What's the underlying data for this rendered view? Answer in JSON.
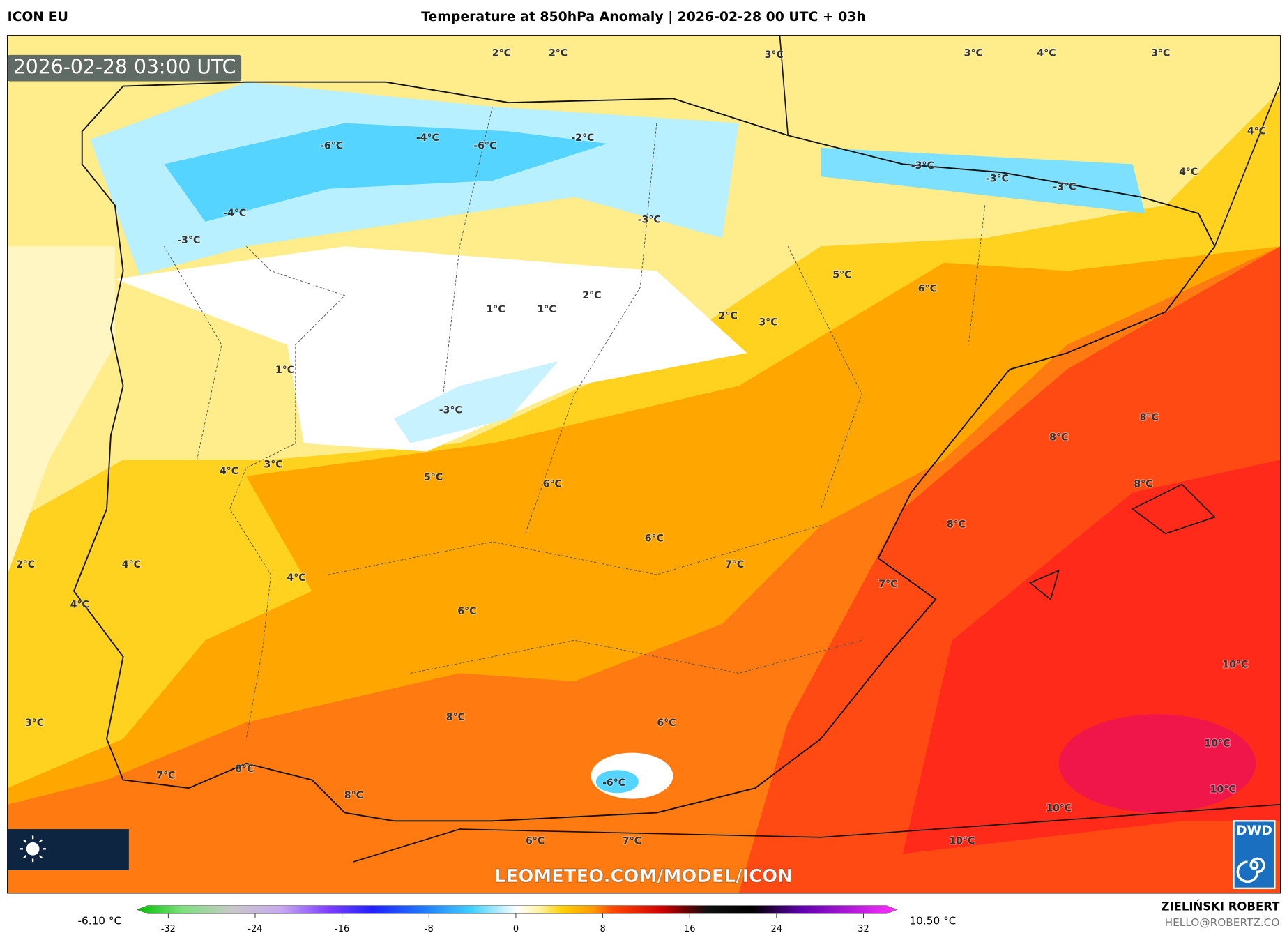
{
  "header": {
    "model": "ICON EU",
    "title": "Temperature at 850hPa Anomaly | 2026-02-28 00 UTC + 03h"
  },
  "map": {
    "timestamp": "2026-02-28 03:00 UTC",
    "contour_labels": [
      "2°C",
      "2°C",
      "3°C",
      "3°C",
      "4°C",
      "3°C",
      "4°C",
      "4°C",
      "-6°C",
      "-4°C",
      "-6°C",
      "-2°C",
      "-3°C",
      "-3°C",
      "-3°C",
      "-4°C",
      "-3°C",
      "-3°C",
      "5°C",
      "6°C",
      "2°C",
      "1°C",
      "1°C",
      "2°C",
      "3°C",
      "1°C",
      "-3°C",
      "8°C",
      "8°C",
      "4°C",
      "3°C",
      "5°C",
      "6°C",
      "8°C",
      "8°C",
      "6°C",
      "2°C",
      "4°C",
      "7°C",
      "4°C",
      "7°C",
      "4°C",
      "6°C",
      "10°C",
      "6°C",
      "3°C",
      "8°C",
      "10°C",
      "7°C",
      "8°C",
      "-6°C",
      "10°C",
      "8°C",
      "10°C",
      "6°C",
      "7°C",
      "10°C"
    ],
    "watermark": "LEOMETEO.COM/MODEL/ICON",
    "logo": "DWD"
  },
  "colorbar": {
    "min_label": "-6.10 °C",
    "max_label": "10.50 °C",
    "ticks": [
      -32,
      -24,
      -16,
      -8,
      0,
      8,
      16,
      24,
      32
    ]
  },
  "footer": {
    "author": "ZIELIŃSKI ROBERT",
    "email": "HELLO@ROBERTZ.CO"
  }
}
